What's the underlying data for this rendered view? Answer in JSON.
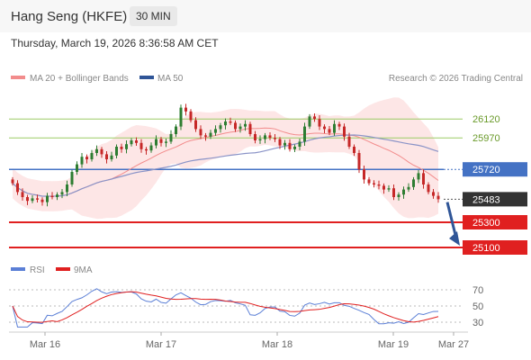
{
  "header": {
    "title": "Hang Seng (HKFE)",
    "interval": "30 MIN"
  },
  "datetime": "Thursday, March 19, 2026 8:36:58 AM CET",
  "legend": {
    "ma20": {
      "label": "MA 20 + Bollinger Bands",
      "color": "#f28c8c"
    },
    "ma50": {
      "label": "MA 50",
      "color": "#2f5597"
    },
    "copyright": "Research © 2026 Trading Central"
  },
  "rsi_legend": {
    "rsi": {
      "label": "RSI",
      "color": "#5b7fd6"
    },
    "ma9": {
      "label": "9MA",
      "color": "#e02020"
    }
  },
  "colors": {
    "resistance": "#9ccc65",
    "pivot": "#4472c4",
    "support": "#e02020",
    "last": "#333333",
    "bull": "#2e7d32",
    "bear": "#c62828",
    "band": "#fde2e2",
    "arrow": "#2f5597"
  },
  "chart_data": [
    {
      "type": "candlestick",
      "x_ticks": [
        "Mar 16",
        "Mar 17",
        "Mar 18",
        "Mar 19",
        "Mar 27"
      ],
      "levels": [
        {
          "value": 26120,
          "label": "26120",
          "kind": "resistance"
        },
        {
          "value": 25970,
          "label": "25970",
          "kind": "resistance"
        },
        {
          "value": 25720,
          "label": "25720",
          "kind": "pivot"
        },
        {
          "value": 25483,
          "label": "25483",
          "kind": "last"
        },
        {
          "value": 25300,
          "label": "25300",
          "kind": "support"
        },
        {
          "value": 25100,
          "label": "25100",
          "kind": "support"
        }
      ],
      "ylim": [
        25050,
        26350
      ],
      "arrow": {
        "from": 25460,
        "to": 25100
      },
      "candles_close": [
        25610,
        25540,
        25500,
        25470,
        25490,
        25480,
        25460,
        25510,
        25500,
        25520,
        25540,
        25600,
        25700,
        25760,
        25820,
        25800,
        25850,
        25880,
        25840,
        25800,
        25830,
        25900,
        25880,
        25920,
        25950,
        25930,
        25880,
        25870,
        25910,
        25960,
        25930,
        25940,
        26000,
        26060,
        26210,
        26180,
        26110,
        26040,
        25990,
        25980,
        26010,
        26040,
        26070,
        26100,
        26090,
        26040,
        26060,
        26080,
        26000,
        25950,
        25960,
        25990,
        25970,
        25960,
        25910,
        25930,
        25880,
        25900,
        25940,
        26060,
        26140,
        26120,
        26060,
        26040,
        26010,
        26080,
        26060,
        25980,
        25900,
        25850,
        25720,
        25640,
        25610,
        25600,
        25590,
        25560,
        25570,
        25500,
        25520,
        25560,
        25580,
        25640,
        25690,
        25600,
        25540,
        25510,
        25483
      ]
    },
    {
      "type": "line",
      "title": "RSI",
      "ylim": [
        30,
        70
      ],
      "y_ticks": [
        70,
        50,
        30
      ]
    }
  ]
}
